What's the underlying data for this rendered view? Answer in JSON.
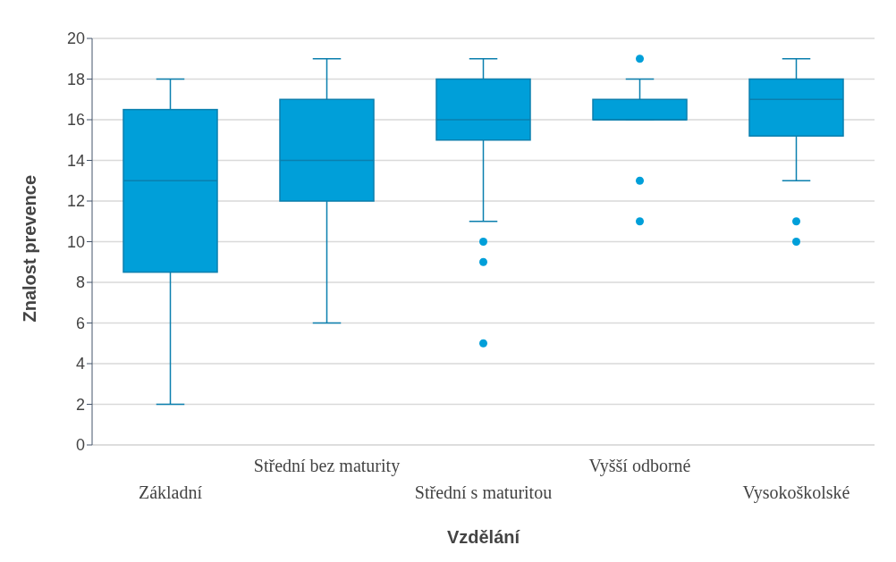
{
  "chart_data": {
    "type": "box",
    "xlabel": "Vzdělání",
    "ylabel": "Znalost prevence",
    "categories": [
      "Základní",
      "Střední bez maturity",
      "Střední s maturitou",
      "Vyšší odborné",
      "Vysokoškolské"
    ],
    "color": "#009fd9",
    "boxes": [
      {
        "low": 2,
        "q1": 8.5,
        "median": 13,
        "q3": 16.5,
        "high": 18
      },
      {
        "low": 6,
        "q1": 12,
        "median": 14,
        "q3": 17,
        "high": 19
      },
      {
        "low": 11,
        "q1": 15,
        "median": 16,
        "q3": 18,
        "high": 19,
        "outliers": [
          10,
          9,
          5
        ]
      },
      {
        "low": 16,
        "q1": 16,
        "median": 16,
        "q3": 17,
        "high": 18,
        "outliers": [
          19,
          13,
          11
        ]
      },
      {
        "low": 13,
        "q1": 15.2,
        "median": 17,
        "q3": 18,
        "high": 19,
        "outliers": [
          11,
          10
        ]
      }
    ],
    "ylim": [
      0,
      20
    ],
    "yticks": [
      0,
      2,
      4,
      6,
      8,
      10,
      12,
      14,
      16,
      18,
      20
    ],
    "grid": "y"
  }
}
